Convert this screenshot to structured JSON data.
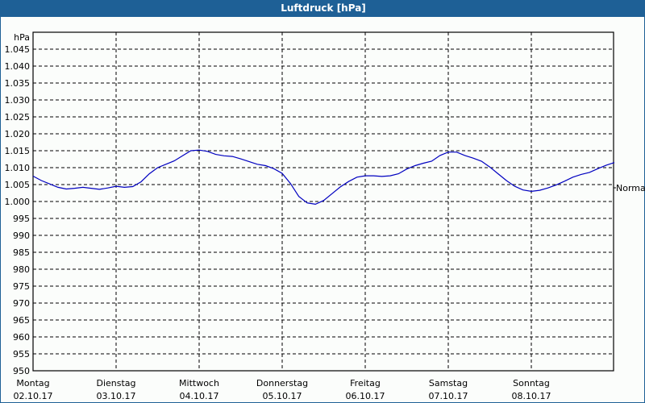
{
  "window": {
    "title": "Luftdruck [hPa]"
  },
  "chart_data": {
    "type": "line",
    "title": "Luftdruck [hPa]",
    "ylabel": "hPa",
    "xlabel": "",
    "ylim": [
      950,
      1045
    ],
    "yticks": [
      "950",
      "955",
      "960",
      "965",
      "970",
      "975",
      "980",
      "985",
      "990",
      "995",
      "1.000",
      "1.005",
      "1.010",
      "1.015",
      "1.020",
      "1.025",
      "1.030",
      "1.035",
      "1.040",
      "1.045"
    ],
    "ytick_values": [
      950,
      955,
      960,
      965,
      970,
      975,
      980,
      985,
      990,
      995,
      1000,
      1005,
      1010,
      1015,
      1020,
      1025,
      1030,
      1035,
      1040,
      1045
    ],
    "categories": [
      {
        "day": "Montag",
        "date": "02.10.17"
      },
      {
        "day": "Dienstag",
        "date": "03.10.17"
      },
      {
        "day": "Mittwoch",
        "date": "04.10.17"
      },
      {
        "day": "Donnerstag",
        "date": "05.10.17"
      },
      {
        "day": "Freitag",
        "date": "06.10.17"
      },
      {
        "day": "Samstag",
        "date": "07.10.17"
      },
      {
        "day": "Sonntag",
        "date": "08.10.17"
      }
    ],
    "reference_label": "Normal",
    "reference_value": 1005,
    "grid": true,
    "line_color": "#0000c0",
    "series": [
      {
        "name": "Luftdruck",
        "x_days": [
          0,
          0.1,
          0.2,
          0.3,
          0.4,
          0.5,
          0.6,
          0.7,
          0.8,
          0.9,
          1.0,
          1.1,
          1.2,
          1.3,
          1.4,
          1.5,
          1.6,
          1.7,
          1.8,
          1.9,
          2.0,
          2.1,
          2.2,
          2.3,
          2.4,
          2.5,
          2.6,
          2.7,
          2.8,
          2.9,
          3.0,
          3.1,
          3.2,
          3.3,
          3.4,
          3.5,
          3.6,
          3.7,
          3.8,
          3.9,
          4.0,
          4.1,
          4.2,
          4.3,
          4.4,
          4.5,
          4.6,
          4.7,
          4.8,
          4.9,
          5.0,
          5.1,
          5.2,
          5.3,
          5.4,
          5.5,
          5.6,
          5.7,
          5.8,
          5.9,
          6.0,
          6.1,
          6.2,
          6.3,
          6.4,
          6.5,
          6.6,
          6.7,
          6.8,
          6.9,
          7.0
        ],
        "values": [
          1007.5,
          1006.2,
          1005.2,
          1004.2,
          1003.7,
          1003.9,
          1004.2,
          1003.9,
          1003.6,
          1004.0,
          1004.5,
          1004.2,
          1004.4,
          1005.8,
          1008.2,
          1010.0,
          1011.0,
          1012.0,
          1013.5,
          1015.0,
          1015.2,
          1014.8,
          1013.9,
          1013.5,
          1013.3,
          1012.6,
          1011.8,
          1011.0,
          1010.6,
          1009.7,
          1008.3,
          1005.3,
          1001.5,
          999.6,
          999.2,
          1000.3,
          1002.3,
          1004.3,
          1005.9,
          1007.2,
          1007.6,
          1007.6,
          1007.4,
          1007.6,
          1008.2,
          1009.6,
          1010.6,
          1011.3,
          1011.9,
          1013.6,
          1014.6,
          1014.6,
          1013.6,
          1012.8,
          1011.9,
          1010.2,
          1008.2,
          1006.2,
          1004.5,
          1003.4,
          1003.0,
          1003.3,
          1004.0,
          1004.9,
          1006.0,
          1007.2,
          1008.0,
          1008.6,
          1009.7,
          1010.7,
          1011.5
        ]
      }
    ]
  }
}
